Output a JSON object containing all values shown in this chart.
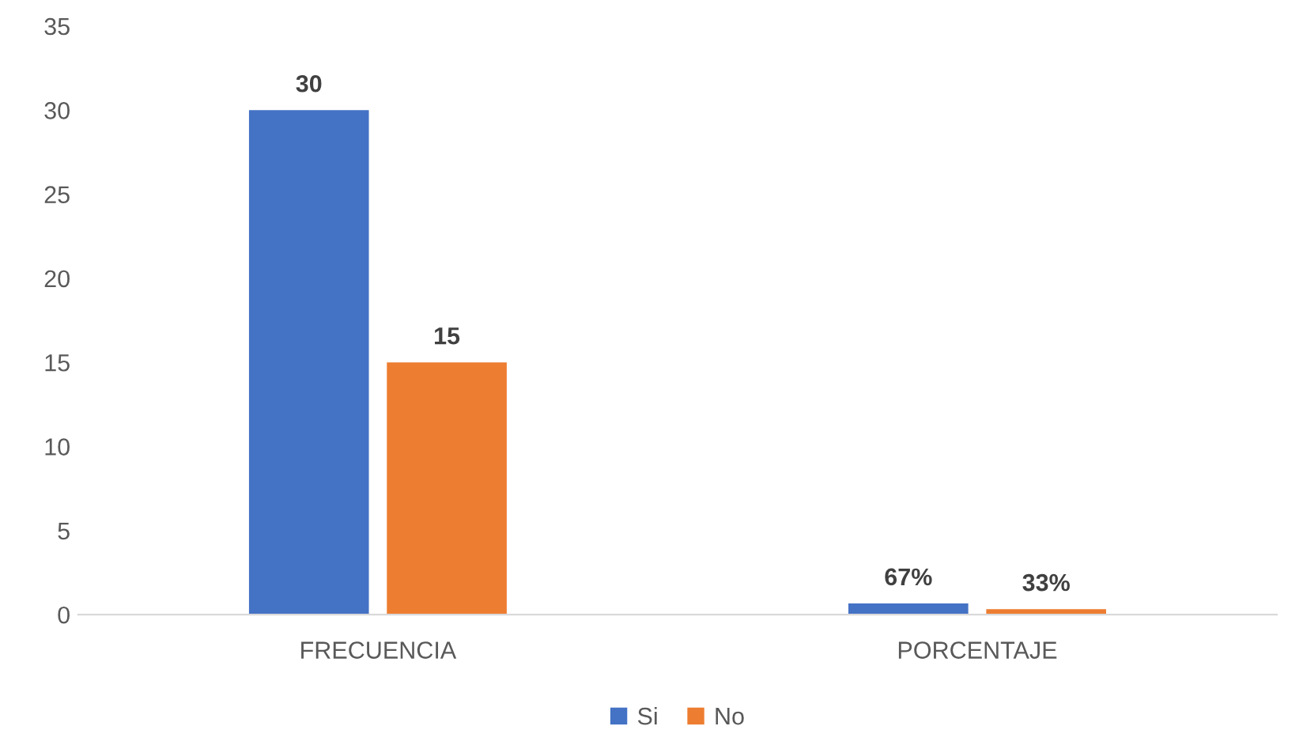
{
  "chart_data": {
    "type": "bar",
    "categories": [
      "FRECUENCIA",
      "PORCENTAJE"
    ],
    "series": [
      {
        "name": "Si",
        "color": "#4472c4",
        "values": [
          30,
          0.67
        ],
        "value_labels": [
          "30",
          "67%"
        ]
      },
      {
        "name": "No",
        "color": "#ed7d31",
        "values": [
          15,
          0.33
        ],
        "value_labels": [
          "15",
          "33%"
        ]
      }
    ],
    "ylim": [
      0,
      35
    ],
    "yticks": [
      0,
      5,
      10,
      15,
      20,
      25,
      30,
      35
    ],
    "grid": false,
    "legend": "bottom"
  }
}
